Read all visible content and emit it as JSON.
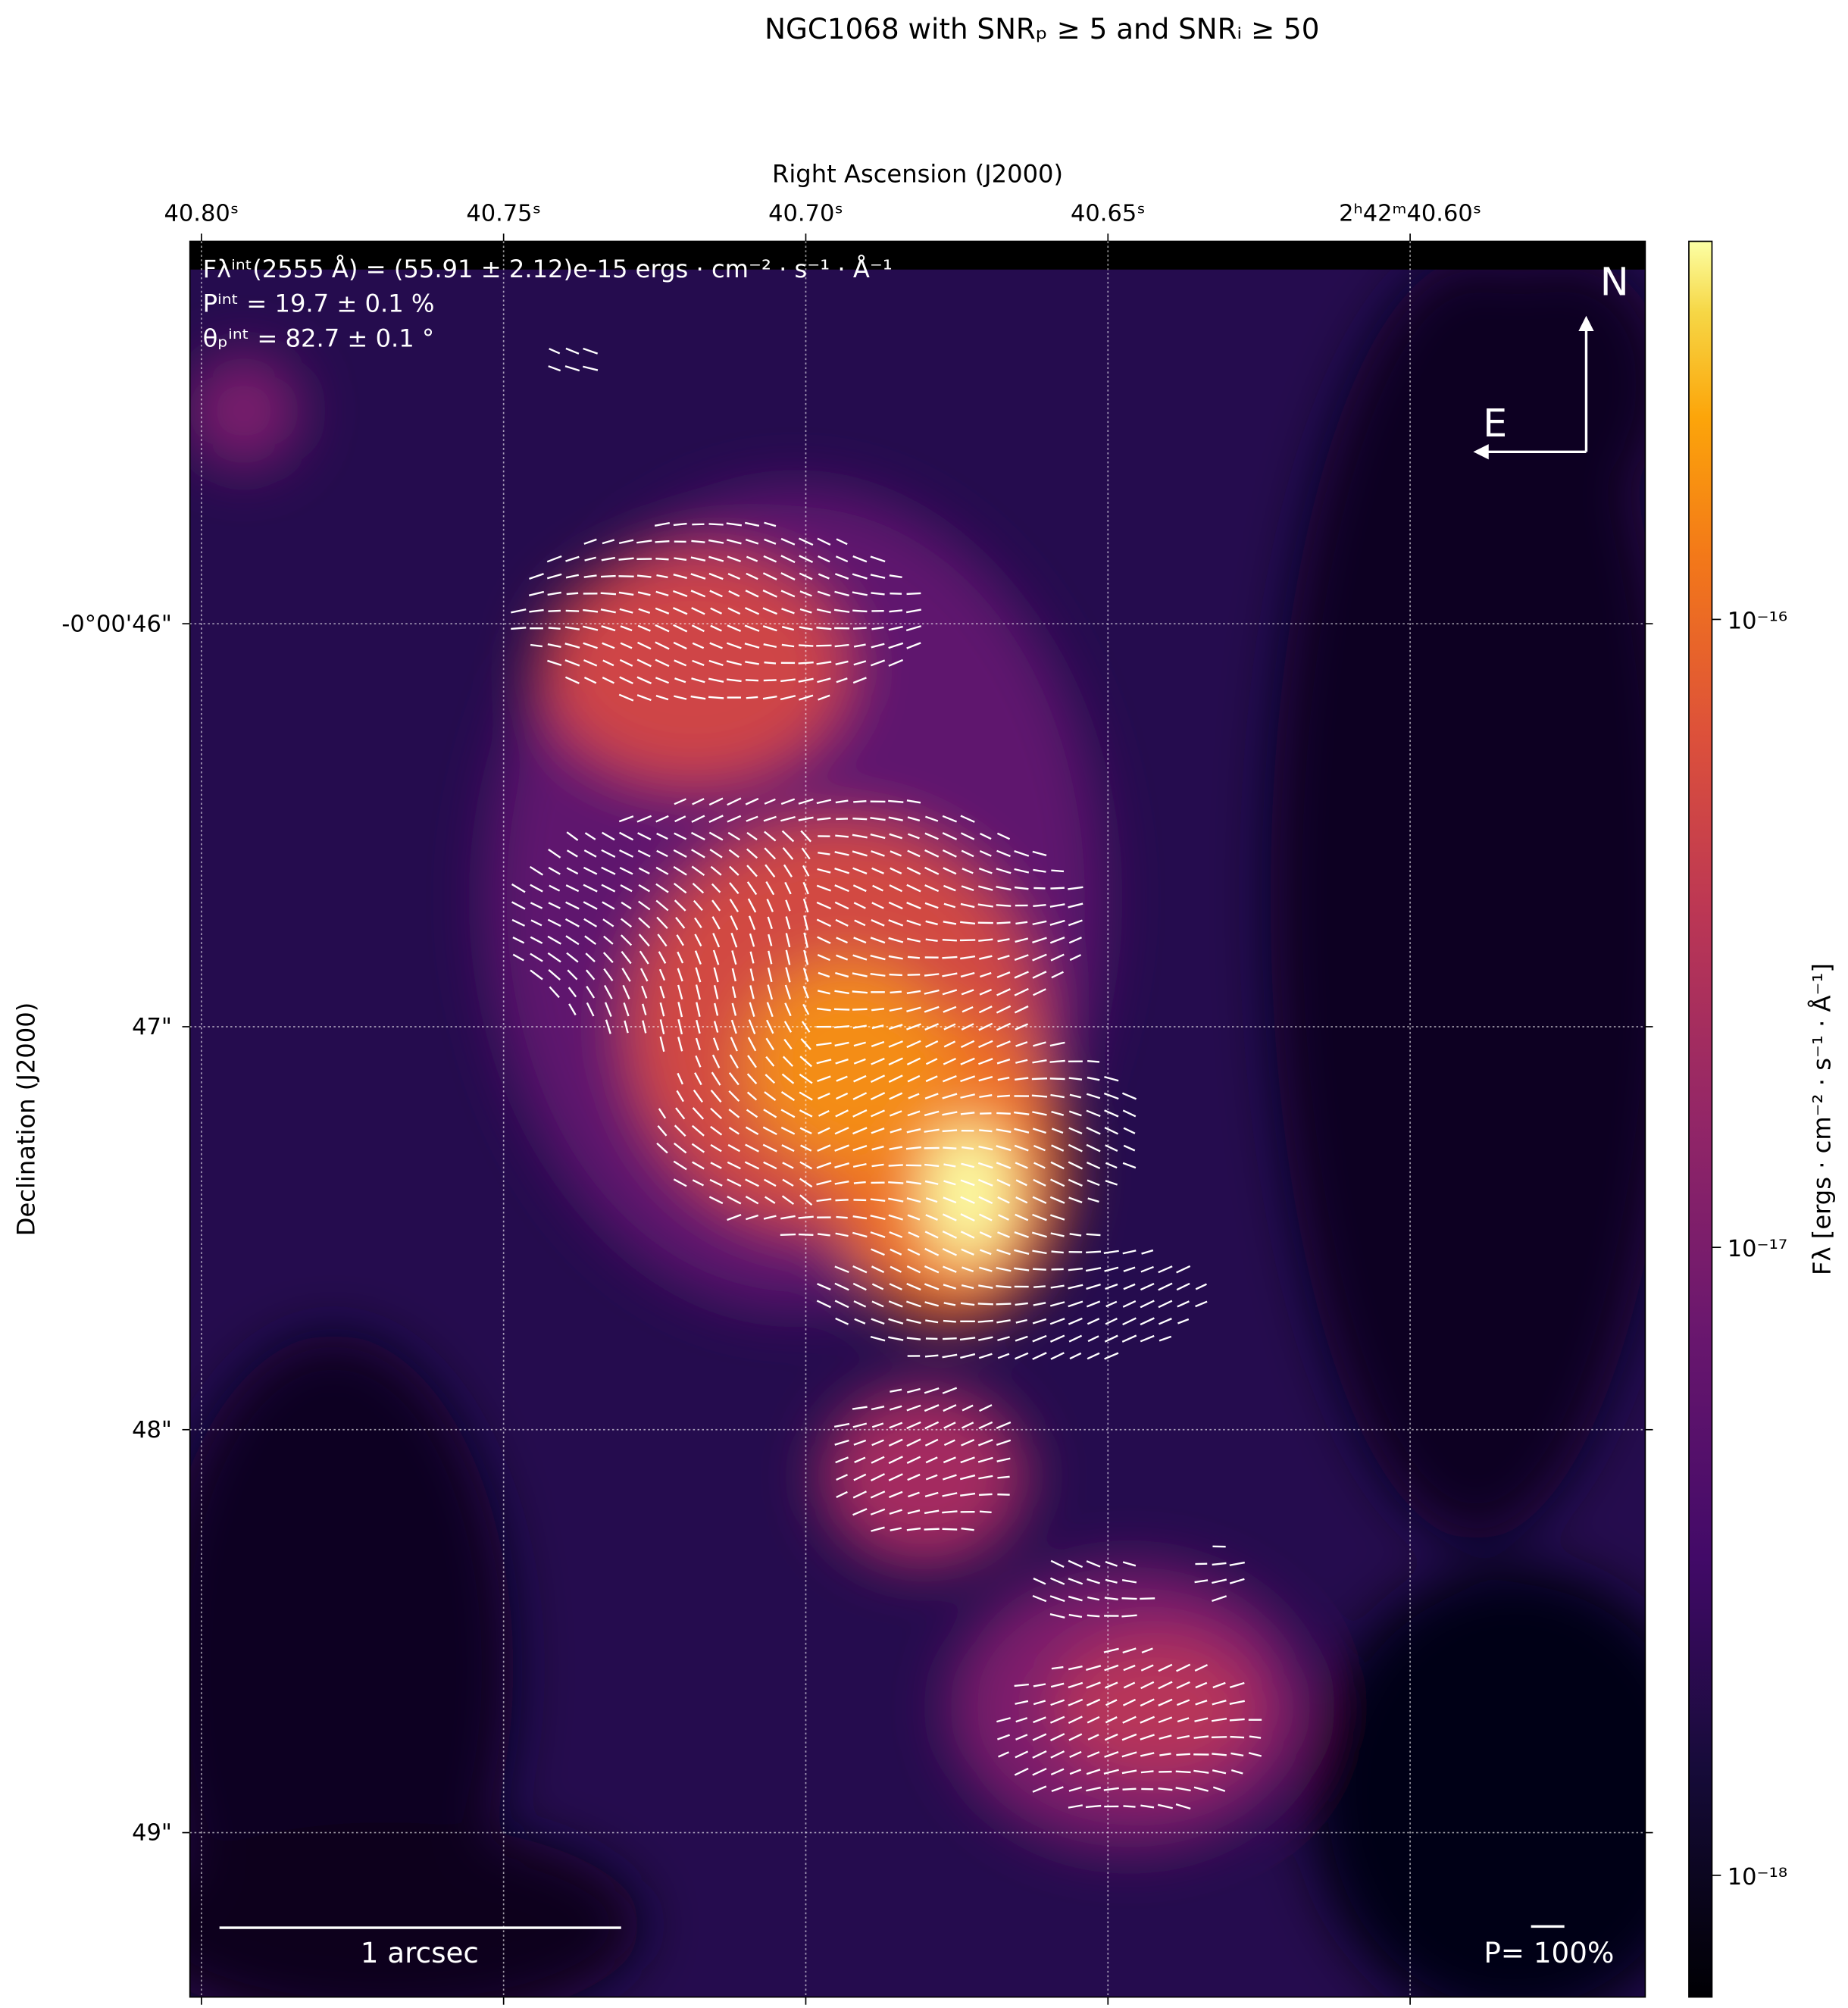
{
  "chart_data": {
    "type": "image",
    "title": "NGC1068 with SNRₚ ≥ 5 and SNRᵢ ≥ 50",
    "xlabel": "Right Ascension (J2000)",
    "ylabel": "Declination (J2000)",
    "xlim": [
      40.8019,
      40.5611
    ],
    "xticks": [
      {
        "value": 40.8,
        "label": "40.80ˢ"
      },
      {
        "value": 40.75,
        "label": "40.75ˢ"
      },
      {
        "value": 40.7,
        "label": "40.70ˢ"
      },
      {
        "value": 40.65,
        "label": "40.65ˢ"
      },
      {
        "value": 40.6,
        "label": "2ʰ42ᵐ40.60ˢ"
      }
    ],
    "ylim": [
      45.051,
      49.408
    ],
    "yticks": [
      {
        "value": 46,
        "label": "-0°00'46\""
      },
      {
        "value": 47,
        "label": "47\""
      },
      {
        "value": 48,
        "label": "48\""
      },
      {
        "value": 49,
        "label": "49\""
      }
    ],
    "grid": true,
    "colormap": "inferno",
    "colorbar": {
      "label": "Fλ [ergs · cm⁻² · s⁻¹ · Å⁻¹]",
      "scale": "log",
      "lim": [
        6.4e-19,
        4e-16
      ],
      "ticks": [
        {
          "value": 1e-16,
          "label": "10⁻¹⁶"
        },
        {
          "value": 1e-17,
          "label": "10⁻¹⁷"
        },
        {
          "value": 1e-18,
          "label": "10⁻¹⁸"
        }
      ]
    },
    "annotations": [
      "Fλⁱⁿᵗ(2555 Å) = (55.91 ± 2.12)e-15 ergs · cm⁻² · s⁻¹ · Å⁻¹",
      "Pⁱⁿᵗ = 19.7 ± 0.1 %",
      "θₚⁱⁿᵗ = 82.7 ± 0.1 °"
    ],
    "compass": {
      "north": "N",
      "east": "E"
    },
    "scale_bar_label": "1 arcsec",
    "vector_scale_label": "P= 100%"
  }
}
